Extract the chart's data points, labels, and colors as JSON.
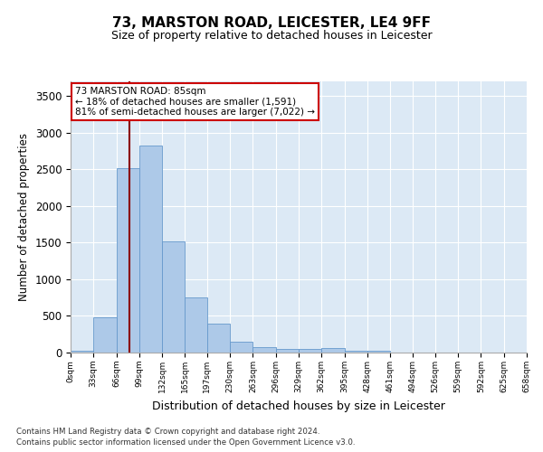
{
  "title1": "73, MARSTON ROAD, LEICESTER, LE4 9FF",
  "title2": "Size of property relative to detached houses in Leicester",
  "xlabel": "Distribution of detached houses by size in Leicester",
  "ylabel": "Number of detached properties",
  "bin_edges": [
    0,
    33,
    66,
    99,
    132,
    165,
    197,
    230,
    263,
    296,
    329,
    362,
    395,
    428,
    461,
    494,
    526,
    559,
    592,
    625,
    658
  ],
  "bar_heights": [
    25,
    480,
    2520,
    2820,
    1520,
    750,
    390,
    150,
    80,
    55,
    55,
    60,
    30,
    20,
    5,
    2,
    1,
    1,
    1,
    1
  ],
  "bar_color": "#adc9e8",
  "bar_edge_color": "#6699cc",
  "property_size": 85,
  "vline_color": "#8b0000",
  "annotation_line1": "73 MARSTON ROAD: 85sqm",
  "annotation_line2": "← 18% of detached houses are smaller (1,591)",
  "annotation_line3": "81% of semi-detached houses are larger (7,022) →",
  "annotation_box_color": "#ffffff",
  "annotation_box_edge": "#cc0000",
  "ylim": [
    0,
    3700
  ],
  "yticks": [
    0,
    500,
    1000,
    1500,
    2000,
    2500,
    3000,
    3500
  ],
  "background_color": "#dce9f5",
  "footer1": "Contains HM Land Registry data © Crown copyright and database right 2024.",
  "footer2": "Contains public sector information licensed under the Open Government Licence v3.0."
}
